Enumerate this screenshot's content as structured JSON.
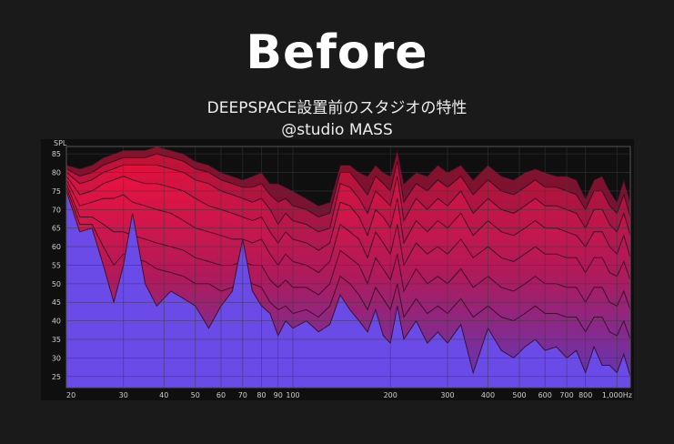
{
  "header": {
    "title": "Before",
    "subtitle": "DEEPSPACE設置前のスタジオの特性",
    "credit": "@studio MASS"
  },
  "colors": {
    "background": "#1a1a1a",
    "plot_background": "#0f0f0f",
    "grid": "#3a3a3a",
    "base_fill": "#6a4be8",
    "top_fill": "#f0123e",
    "curve_line": "#2a0a1e"
  },
  "chart_data": {
    "type": "area",
    "title": "",
    "xlabel": "",
    "ylabel": "SPL",
    "x_scale": "log",
    "xlim": [
      20,
      1100
    ],
    "ylim": [
      22,
      87
    ],
    "x_ticks": [
      {
        "v": 20,
        "label": "20"
      },
      {
        "v": 30,
        "label": "30"
      },
      {
        "v": 40,
        "label": "40"
      },
      {
        "v": 50,
        "label": "50"
      },
      {
        "v": 60,
        "label": "60"
      },
      {
        "v": 70,
        "label": "70"
      },
      {
        "v": 80,
        "label": "80"
      },
      {
        "v": 90,
        "label": "90"
      },
      {
        "v": 100,
        "label": "100"
      },
      {
        "v": 200,
        "label": "200"
      },
      {
        "v": 300,
        "label": "300"
      },
      {
        "v": 400,
        "label": "400"
      },
      {
        "v": 500,
        "label": "500"
      },
      {
        "v": 600,
        "label": "600"
      },
      {
        "v": 700,
        "label": "700"
      },
      {
        "v": 800,
        "label": "800"
      },
      {
        "v": 1000,
        "label": "1,000Hz"
      }
    ],
    "y_ticks": [
      25,
      30,
      35,
      40,
      45,
      50,
      55,
      60,
      65,
      70,
      75,
      80,
      85
    ],
    "grid": true,
    "x": [
      20,
      22,
      24,
      26,
      28,
      30,
      32,
      35,
      38,
      42,
      46,
      50,
      55,
      60,
      65,
      70,
      75,
      80,
      85,
      90,
      95,
      100,
      110,
      120,
      130,
      140,
      150,
      160,
      170,
      180,
      190,
      200,
      210,
      220,
      240,
      260,
      280,
      300,
      330,
      360,
      400,
      440,
      480,
      520,
      560,
      600,
      650,
      700,
      750,
      800,
      850,
      900,
      950,
      1000,
      1050,
      1100
    ],
    "series": [
      {
        "values": [
          82,
          81,
          82,
          84,
          85,
          86,
          86,
          86,
          87,
          86,
          85,
          83,
          82,
          80,
          79,
          78,
          79,
          80,
          77,
          77,
          76,
          75,
          73,
          71,
          72,
          82,
          82,
          80,
          79,
          82,
          80,
          79,
          86,
          77,
          80,
          79,
          82,
          80,
          82,
          78,
          82,
          79,
          78,
          80,
          81,
          80,
          79,
          79,
          78,
          73,
          78,
          79,
          75,
          72,
          78,
          72
        ]
      },
      {
        "values": [
          81,
          79,
          80,
          82,
          83,
          84,
          84,
          84,
          85,
          84,
          83,
          81,
          80,
          78,
          77,
          76,
          76,
          77,
          74,
          72,
          73,
          71,
          70,
          68,
          69,
          80,
          80,
          77,
          74,
          79,
          77,
          75,
          83,
          72,
          77,
          75,
          78,
          76,
          79,
          74,
          78,
          75,
          74,
          76,
          78,
          76,
          76,
          75,
          74,
          70,
          75,
          75,
          71,
          69,
          74,
          68
        ]
      },
      {
        "values": [
          80,
          77,
          78,
          80,
          81,
          82,
          82,
          82,
          82,
          81,
          80,
          78,
          77,
          75,
          74,
          73,
          72,
          73,
          70,
          66,
          69,
          67,
          66,
          64,
          65,
          77,
          76,
          73,
          69,
          75,
          73,
          71,
          79,
          67,
          73,
          70,
          73,
          71,
          75,
          69,
          73,
          70,
          69,
          71,
          73,
          71,
          71,
          70,
          69,
          65,
          70,
          70,
          66,
          64,
          69,
          63
        ]
      },
      {
        "values": [
          79,
          74,
          75,
          77,
          78,
          79,
          78,
          77,
          77,
          76,
          75,
          73,
          71,
          70,
          69,
          68,
          67,
          68,
          64,
          61,
          64,
          62,
          61,
          59,
          61,
          72,
          71,
          68,
          63,
          70,
          68,
          65,
          73,
          61,
          67,
          64,
          67,
          65,
          69,
          63,
          67,
          64,
          63,
          65,
          67,
          65,
          65,
          64,
          63,
          60,
          64,
          64,
          60,
          58,
          63,
          57
        ]
      },
      {
        "values": [
          78,
          71,
          72,
          73,
          73,
          74,
          72,
          71,
          70,
          69,
          67,
          65,
          64,
          63,
          62,
          62,
          61,
          62,
          58,
          55,
          58,
          56,
          55,
          53,
          56,
          66,
          64,
          62,
          57,
          64,
          61,
          58,
          66,
          55,
          61,
          58,
          60,
          58,
          62,
          57,
          60,
          57,
          56,
          58,
          60,
          58,
          58,
          57,
          57,
          53,
          57,
          57,
          53,
          52,
          56,
          51
        ]
      },
      {
        "values": [
          77,
          68,
          68,
          66,
          64,
          64,
          63,
          62,
          61,
          60,
          59,
          57,
          56,
          55,
          55,
          56,
          55,
          55,
          51,
          49,
          51,
          49,
          49,
          47,
          50,
          59,
          57,
          55,
          50,
          57,
          54,
          51,
          58,
          48,
          54,
          50,
          52,
          50,
          54,
          49,
          52,
          49,
          48,
          50,
          52,
          50,
          50,
          49,
          49,
          45,
          49,
          49,
          45,
          44,
          48,
          43
        ]
      },
      {
        "values": [
          76,
          66,
          66,
          60,
          55,
          58,
          57,
          56,
          54,
          53,
          52,
          50,
          50,
          48,
          49,
          52,
          50,
          49,
          45,
          43,
          44,
          42,
          43,
          41,
          44,
          52,
          50,
          47,
          43,
          49,
          46,
          43,
          50,
          41,
          46,
          42,
          44,
          42,
          46,
          41,
          44,
          41,
          40,
          42,
          44,
          42,
          42,
          41,
          41,
          37,
          41,
          41,
          37,
          36,
          40,
          35
        ]
      },
      {
        "values": [
          75,
          64,
          65,
          55,
          45,
          55,
          69,
          50,
          44,
          48,
          46,
          44,
          38,
          44,
          48,
          62,
          48,
          44,
          42,
          36,
          40,
          38,
          40,
          37,
          39,
          47,
          43,
          40,
          37,
          43,
          36,
          34,
          44,
          35,
          40,
          34,
          37,
          34,
          39,
          26,
          38,
          32,
          30,
          33,
          35,
          32,
          33,
          30,
          32,
          26,
          33,
          28,
          28,
          26,
          31,
          25
        ]
      }
    ]
  }
}
